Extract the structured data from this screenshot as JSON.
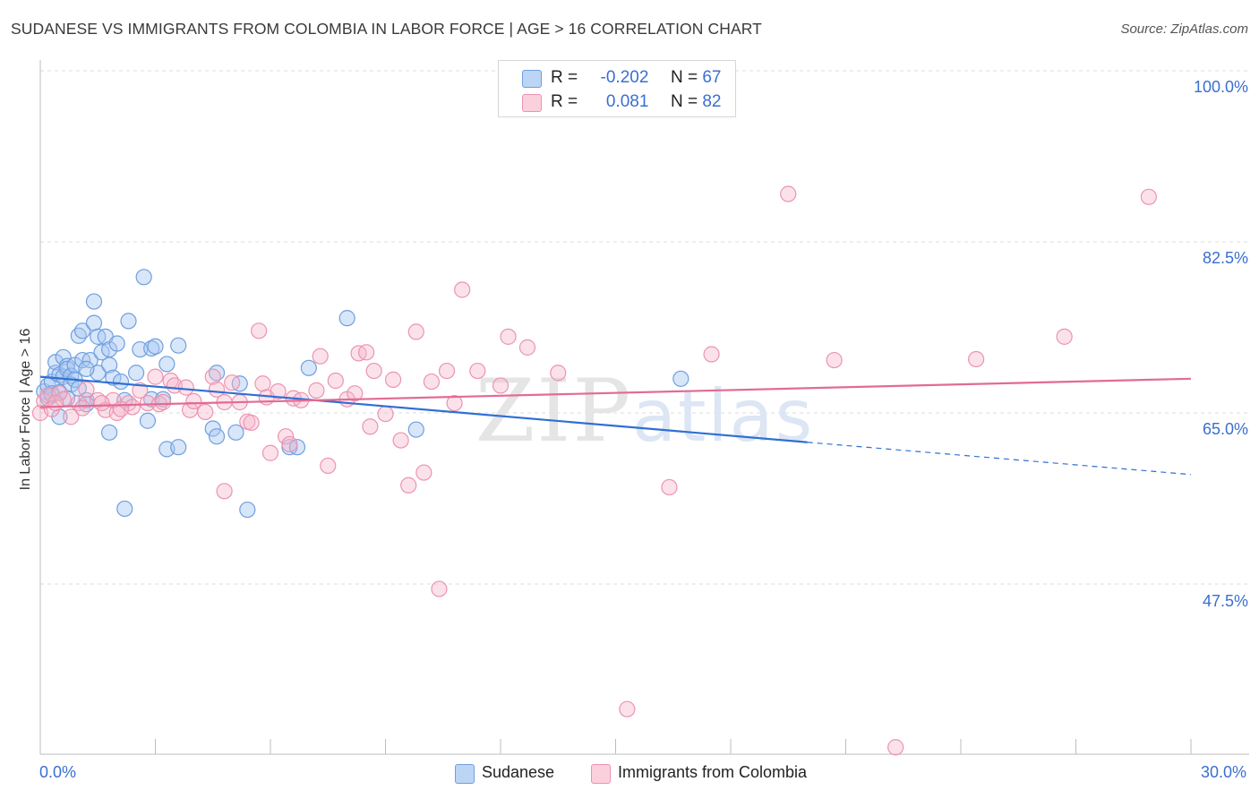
{
  "title": "SUDANESE VS IMMIGRANTS FROM COLOMBIA IN LABOR FORCE | AGE > 16 CORRELATION CHART",
  "source": "Source: ZipAtlas.com",
  "watermark": "ZIPatlas",
  "legend": {
    "rows": [
      {
        "r_label": "R =",
        "r_value": "-0.202",
        "n_label": "N =",
        "n_value": "67",
        "color": "#a9c8f2"
      },
      {
        "r_label": "R =",
        "r_value": "0.081",
        "n_label": "N =",
        "n_value": "82",
        "color": "#f6b7cb"
      }
    ]
  },
  "bottom_legend": [
    {
      "label": "Sudanese",
      "color": "#a9c8f2"
    },
    {
      "label": "Immigrants from Colombia",
      "color": "#f6b7cb"
    }
  ],
  "chart_data": {
    "type": "scatter",
    "title": "SUDANESE VS IMMIGRANTS FROM COLOMBIA IN LABOR FORCE | AGE > 16 CORRELATION CHART",
    "xlabel": "",
    "ylabel": "In Labor Force | Age > 16",
    "xlim": [
      0,
      30
    ],
    "ylim": [
      30,
      100
    ],
    "x_tick_labels": [
      "0.0%",
      "30.0%"
    ],
    "y_ticks": [
      47.5,
      65.0,
      82.5,
      100.0
    ],
    "y_tick_labels": [
      "47.5%",
      "65.0%",
      "82.5%",
      "100.0%"
    ],
    "grid": true,
    "legend_position": "top-center",
    "series": [
      {
        "name": "Sudanese",
        "color": "#4a86e0",
        "fill": "#a9c8f2",
        "trend": {
          "x": [
            0.0,
            20.0
          ],
          "y": [
            68.7,
            62.0
          ],
          "dashed_to": [
            30.0,
            58.7
          ],
          "color": "#2f6fd4"
        },
        "points": [
          [
            0.1,
            67.2
          ],
          [
            0.2,
            66.5
          ],
          [
            0.2,
            67.8
          ],
          [
            0.3,
            68.2
          ],
          [
            0.3,
            66.8
          ],
          [
            0.4,
            69.1
          ],
          [
            0.4,
            70.2
          ],
          [
            0.5,
            68.9
          ],
          [
            0.5,
            64.6
          ],
          [
            0.6,
            70.7
          ],
          [
            0.6,
            68.7
          ],
          [
            0.7,
            69.8
          ],
          [
            0.7,
            69.5
          ],
          [
            0.8,
            68.8
          ],
          [
            0.8,
            67.9
          ],
          [
            0.9,
            69.9
          ],
          [
            0.9,
            68.4
          ],
          [
            1.0,
            72.9
          ],
          [
            1.0,
            67.5
          ],
          [
            1.1,
            70.4
          ],
          [
            1.1,
            73.4
          ],
          [
            1.2,
            66.3
          ],
          [
            1.2,
            65.9
          ],
          [
            1.3,
            70.4
          ],
          [
            1.4,
            76.4
          ],
          [
            1.4,
            74.2
          ],
          [
            1.5,
            72.8
          ],
          [
            1.5,
            69.1
          ],
          [
            1.6,
            71.2
          ],
          [
            1.7,
            72.8
          ],
          [
            1.8,
            69.9
          ],
          [
            1.8,
            71.5
          ],
          [
            1.8,
            63.0
          ],
          [
            1.9,
            68.6
          ],
          [
            2.0,
            72.1
          ],
          [
            2.1,
            68.2
          ],
          [
            2.2,
            66.3
          ],
          [
            2.2,
            55.2
          ],
          [
            2.3,
            74.4
          ],
          [
            2.5,
            69.1
          ],
          [
            2.6,
            71.5
          ],
          [
            2.7,
            78.9
          ],
          [
            2.8,
            64.2
          ],
          [
            2.9,
            66.4
          ],
          [
            2.9,
            71.6
          ],
          [
            3.0,
            71.8
          ],
          [
            3.2,
            66.4
          ],
          [
            3.3,
            70.0
          ],
          [
            3.3,
            61.3
          ],
          [
            3.6,
            61.5
          ],
          [
            3.6,
            71.9
          ],
          [
            4.5,
            63.4
          ],
          [
            4.6,
            69.1
          ],
          [
            4.6,
            62.6
          ],
          [
            5.1,
            63.0
          ],
          [
            5.2,
            68.0
          ],
          [
            5.4,
            55.1
          ],
          [
            6.5,
            61.5
          ],
          [
            6.7,
            61.5
          ],
          [
            7.0,
            69.6
          ],
          [
            8.0,
            74.7
          ],
          [
            9.8,
            63.3
          ],
          [
            16.7,
            68.5
          ],
          [
            1.2,
            69.5
          ],
          [
            0.7,
            66.5
          ],
          [
            0.3,
            67.0
          ],
          [
            0.5,
            67.1
          ]
        ]
      },
      {
        "name": "Immigrants from Colombia",
        "color": "#e26b94",
        "fill": "#f6b7cb",
        "trend": {
          "x": [
            0.0,
            30.0
          ],
          "y": [
            65.6,
            68.5
          ],
          "color": "#e26b94"
        },
        "points": [
          [
            0.0,
            65.0
          ],
          [
            0.1,
            66.2
          ],
          [
            0.2,
            66.8
          ],
          [
            0.3,
            65.4
          ],
          [
            0.5,
            67.0
          ],
          [
            0.6,
            66.4
          ],
          [
            0.8,
            64.6
          ],
          [
            1.0,
            66.0
          ],
          [
            1.2,
            67.4
          ],
          [
            1.5,
            66.3
          ],
          [
            1.7,
            65.3
          ],
          [
            1.9,
            66.3
          ],
          [
            2.0,
            65.0
          ],
          [
            2.3,
            66.0
          ],
          [
            2.4,
            65.6
          ],
          [
            2.6,
            67.3
          ],
          [
            2.8,
            66.0
          ],
          [
            3.0,
            68.7
          ],
          [
            3.1,
            65.9
          ],
          [
            3.2,
            66.1
          ],
          [
            3.4,
            68.3
          ],
          [
            3.5,
            67.8
          ],
          [
            3.8,
            67.6
          ],
          [
            3.9,
            65.3
          ],
          [
            4.0,
            66.2
          ],
          [
            4.3,
            65.1
          ],
          [
            4.5,
            68.7
          ],
          [
            4.6,
            67.4
          ],
          [
            4.8,
            66.1
          ],
          [
            4.8,
            57.0
          ],
          [
            5.0,
            68.1
          ],
          [
            5.2,
            66.1
          ],
          [
            5.4,
            64.1
          ],
          [
            5.5,
            64.0
          ],
          [
            5.7,
            73.4
          ],
          [
            5.8,
            68.0
          ],
          [
            5.9,
            66.6
          ],
          [
            6.0,
            60.9
          ],
          [
            6.2,
            67.2
          ],
          [
            6.4,
            62.6
          ],
          [
            6.5,
            61.8
          ],
          [
            6.6,
            66.5
          ],
          [
            6.8,
            66.3
          ],
          [
            7.2,
            67.3
          ],
          [
            7.3,
            70.8
          ],
          [
            7.5,
            59.6
          ],
          [
            7.7,
            68.3
          ],
          [
            8.0,
            66.4
          ],
          [
            8.2,
            67.0
          ],
          [
            8.3,
            71.1
          ],
          [
            8.5,
            71.2
          ],
          [
            8.6,
            63.6
          ],
          [
            8.7,
            69.3
          ],
          [
            9.0,
            64.9
          ],
          [
            9.2,
            68.4
          ],
          [
            9.4,
            62.2
          ],
          [
            9.6,
            57.6
          ],
          [
            9.8,
            73.3
          ],
          [
            10.0,
            58.9
          ],
          [
            10.2,
            68.2
          ],
          [
            10.4,
            47.0
          ],
          [
            10.6,
            69.3
          ],
          [
            10.8,
            66.0
          ],
          [
            11.0,
            77.6
          ],
          [
            11.4,
            69.3
          ],
          [
            12.0,
            67.8
          ],
          [
            12.2,
            72.8
          ],
          [
            12.7,
            71.7
          ],
          [
            13.5,
            69.1
          ],
          [
            16.4,
            57.4
          ],
          [
            17.5,
            71.0
          ],
          [
            19.5,
            87.4
          ],
          [
            20.7,
            70.4
          ],
          [
            22.3,
            30.8
          ],
          [
            24.4,
            70.5
          ],
          [
            26.7,
            72.8
          ],
          [
            28.9,
            87.1
          ],
          [
            15.3,
            34.7
          ],
          [
            0.4,
            66.0
          ],
          [
            1.1,
            65.5
          ],
          [
            1.6,
            66.0
          ],
          [
            2.1,
            65.4
          ]
        ]
      }
    ]
  }
}
